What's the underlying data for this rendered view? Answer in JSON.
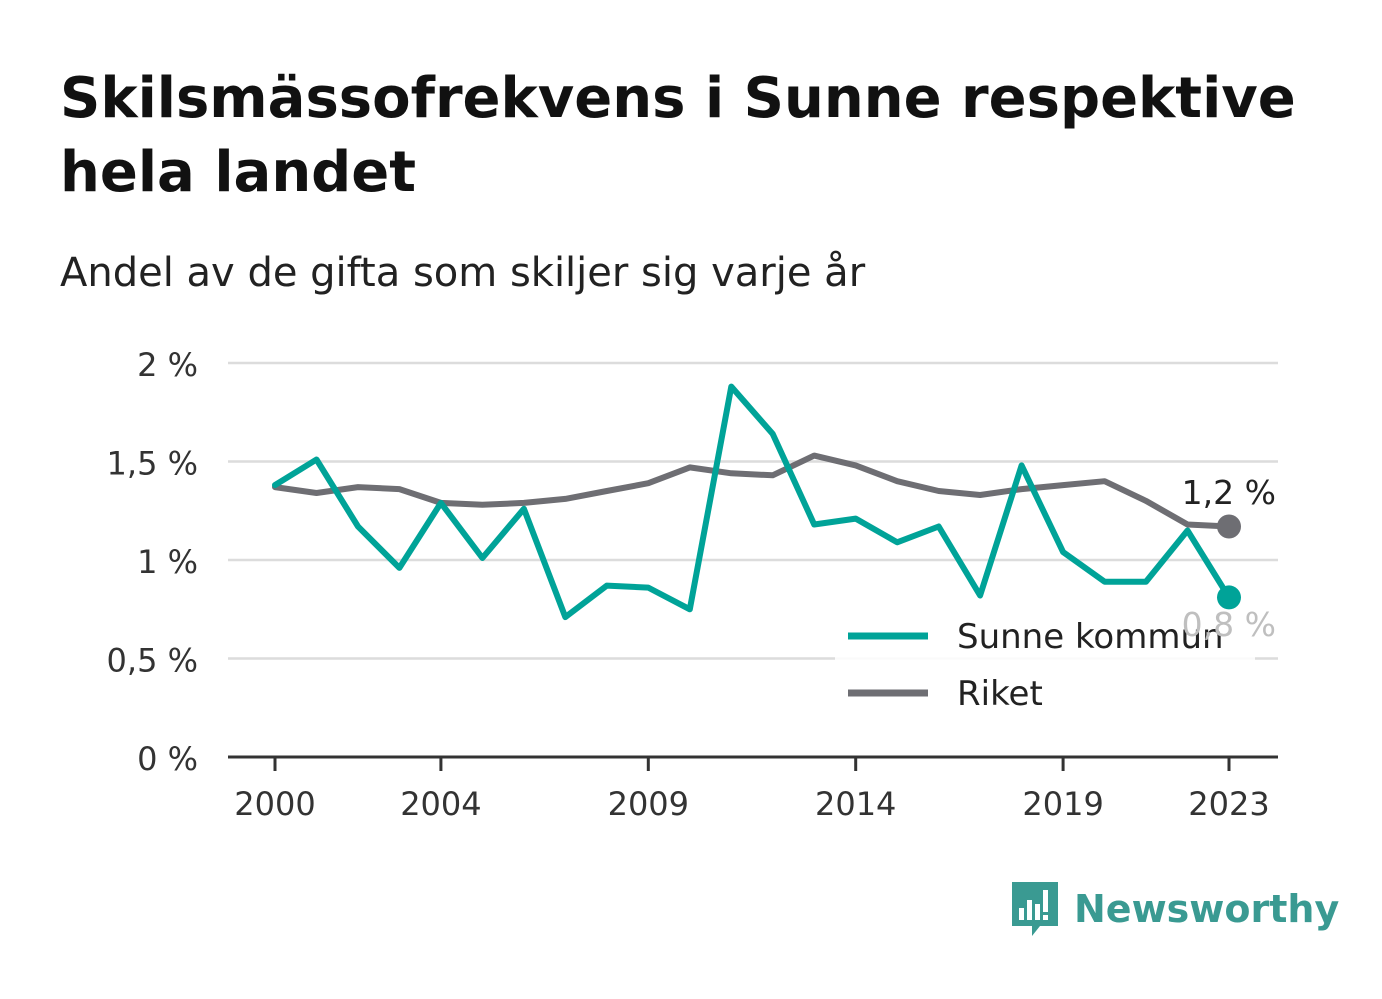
{
  "header": {
    "title": "Skilsmässofrekvens i Sunne respektive hela landet",
    "subtitle": "Andel av de gifta som skiljer sig varje år"
  },
  "branding": {
    "name": "Newsworthy",
    "icon": "newsworthy-logo-icon",
    "color": "#3a9a92"
  },
  "chart_data": {
    "type": "line",
    "title": "Skilsmässofrekvens i Sunne respektive hela landet",
    "subtitle": "Andel av de gifta som skiljer sig varje år",
    "x": [
      2000,
      2001,
      2002,
      2003,
      2004,
      2005,
      2006,
      2007,
      2008,
      2009,
      2010,
      2011,
      2012,
      2013,
      2014,
      2015,
      2016,
      2017,
      2018,
      2019,
      2020,
      2021,
      2022,
      2023
    ],
    "xticks": [
      2000,
      2004,
      2009,
      2014,
      2019,
      2023
    ],
    "xtick_labels": [
      "2000",
      "2004",
      "2009",
      "2014",
      "2019",
      "2023"
    ],
    "xlim": [
      2000,
      2023
    ],
    "ylim": [
      0,
      2
    ],
    "yticks": [
      0,
      0.5,
      1,
      1.5,
      2
    ],
    "ytick_labels": [
      "0 %",
      "0,5 %",
      "1 %",
      "1,5 %",
      "2 %"
    ],
    "grid": true,
    "legend_position": "bottom-right",
    "series": [
      {
        "name": "Sunne kommun",
        "color": "#00a398",
        "values": [
          1.38,
          1.51,
          1.17,
          0.96,
          1.29,
          1.01,
          1.26,
          0.71,
          0.87,
          0.86,
          0.75,
          1.88,
          1.64,
          1.18,
          1.21,
          1.09,
          1.17,
          0.82,
          1.48,
          1.04,
          0.89,
          0.89,
          1.15,
          0.81
        ],
        "end_label": "0,8 %"
      },
      {
        "name": "Riket",
        "color": "#6e6e73",
        "values": [
          1.37,
          1.34,
          1.37,
          1.36,
          1.29,
          1.28,
          1.29,
          1.31,
          1.35,
          1.39,
          1.47,
          1.44,
          1.43,
          1.53,
          1.48,
          1.4,
          1.35,
          1.33,
          1.36,
          1.38,
          1.4,
          1.3,
          1.18,
          1.17
        ],
        "end_label": "1,2 %"
      }
    ]
  }
}
